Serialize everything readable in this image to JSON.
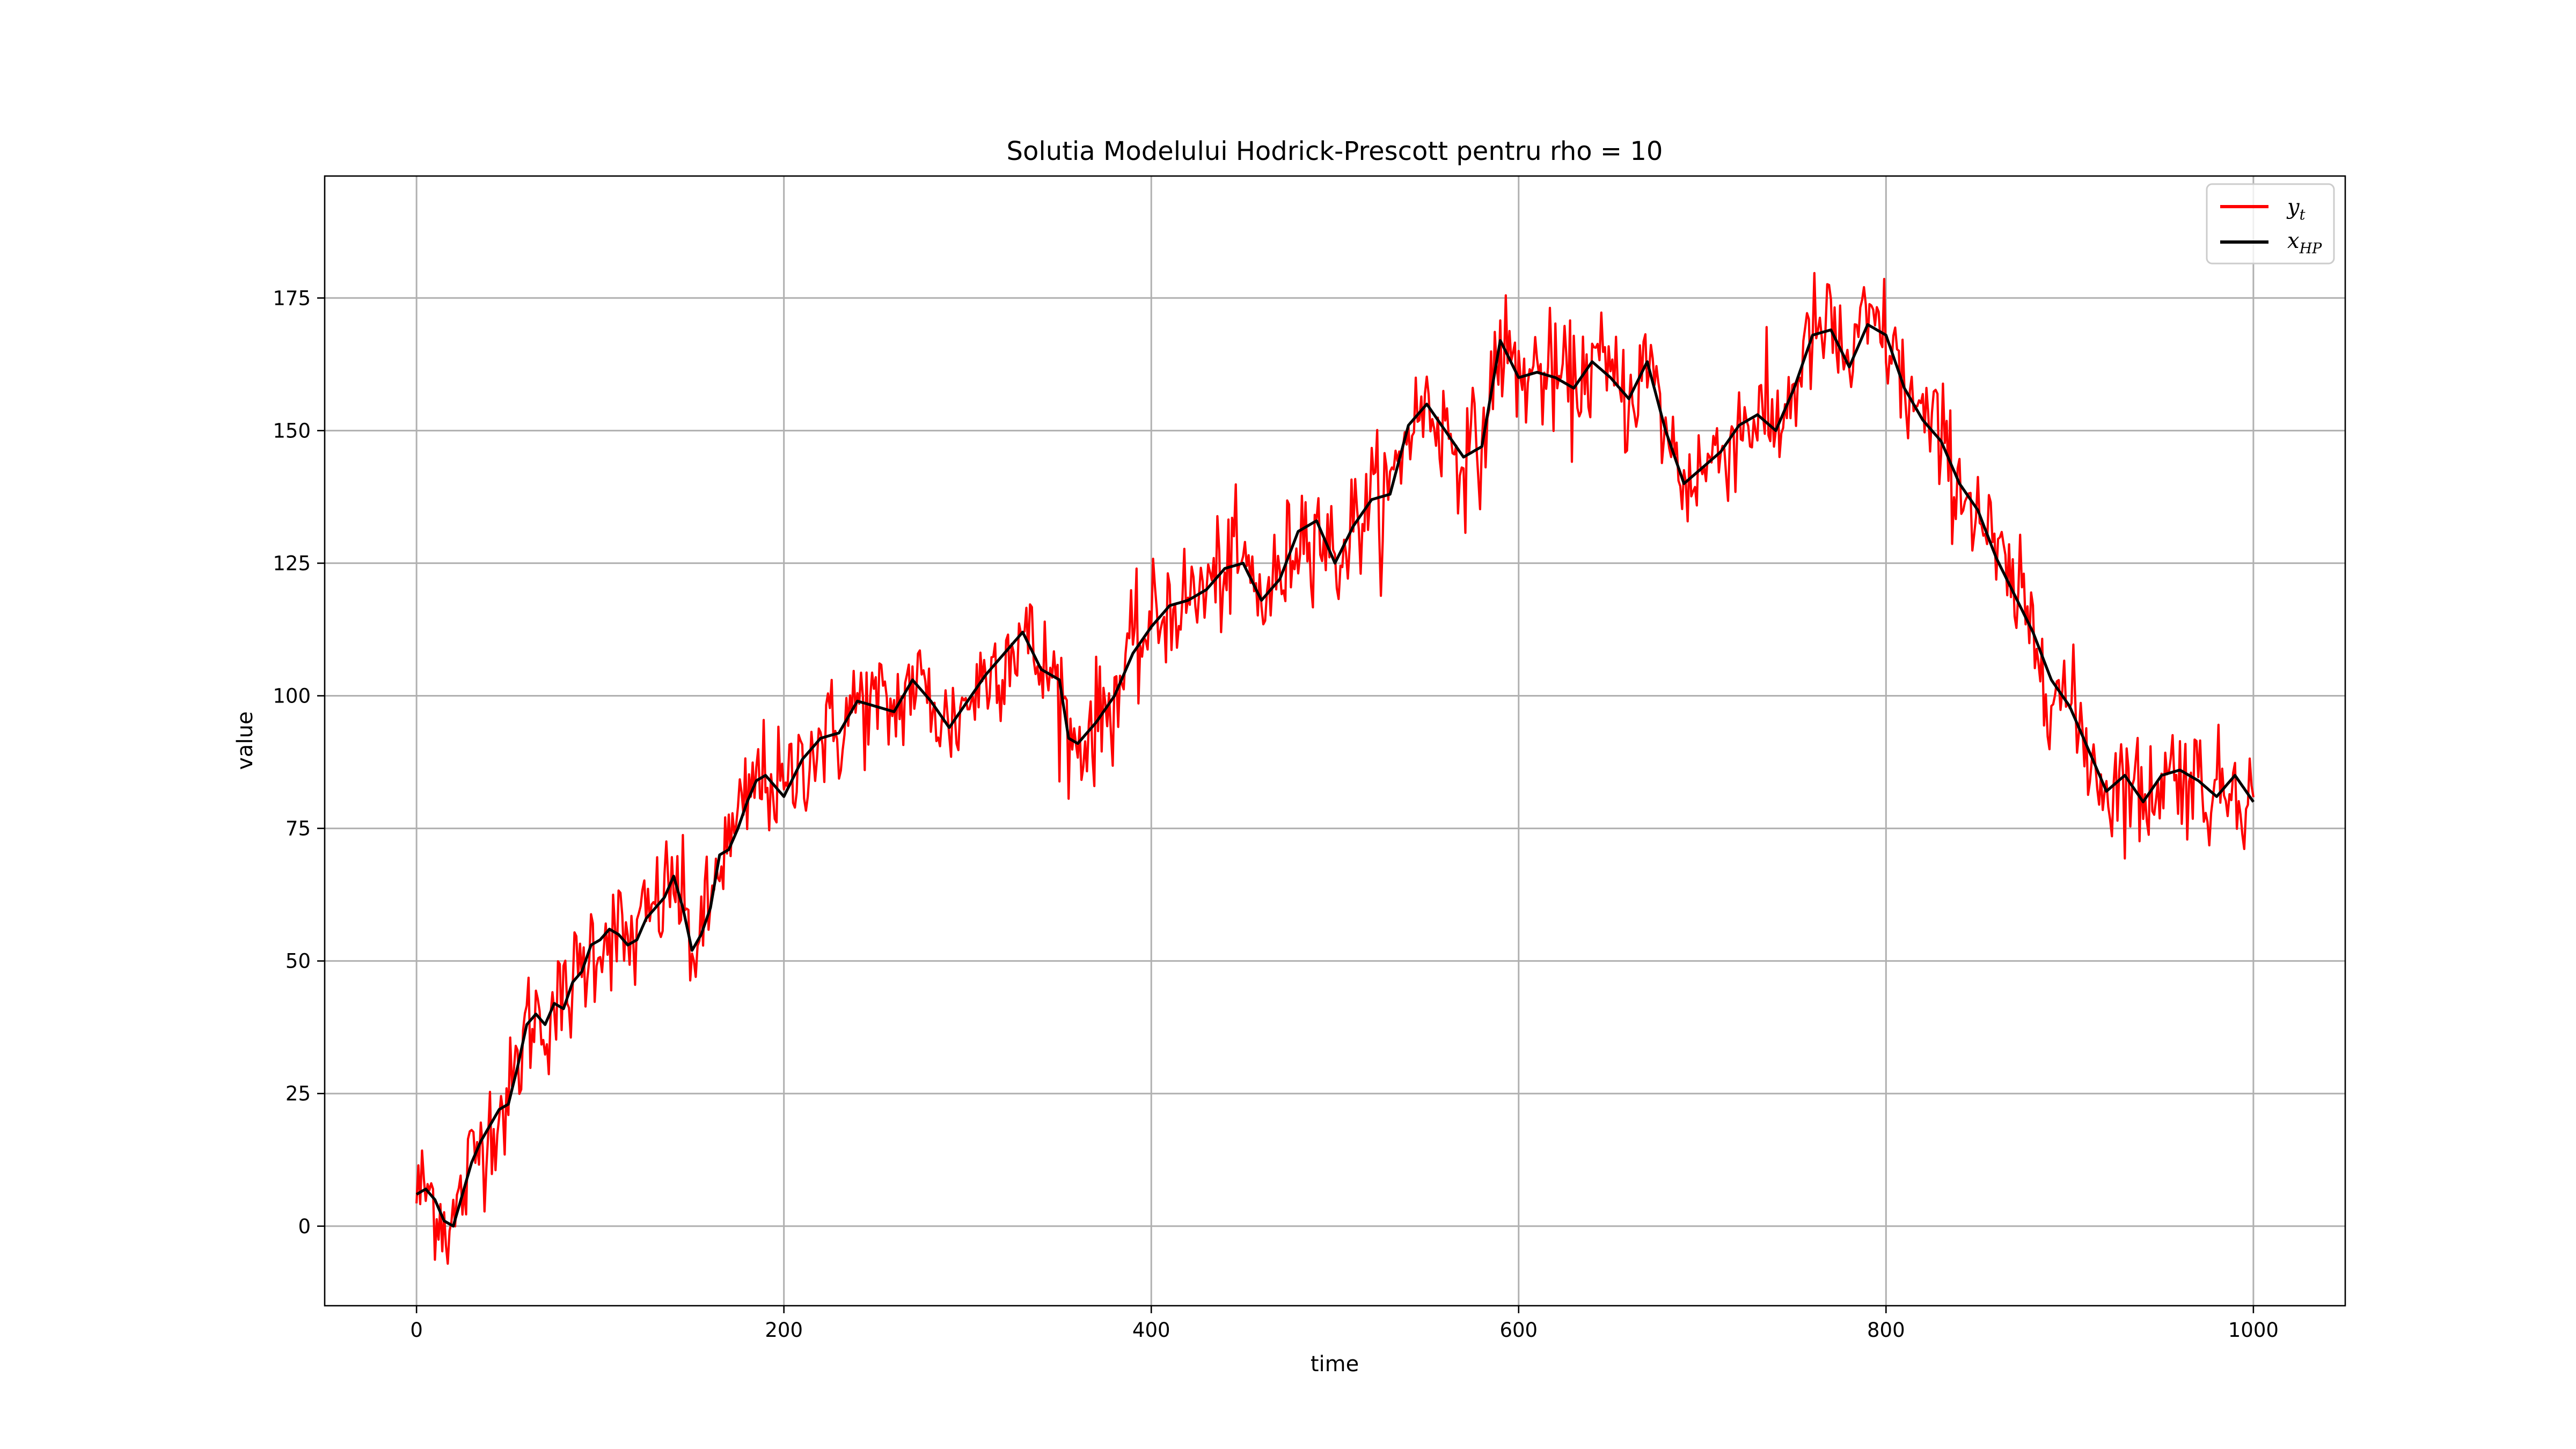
{
  "chart_data": {
    "type": "line",
    "title": "Solutia Modelului Hodrick-Prescott pentru rho = 10",
    "xlabel": "time",
    "ylabel": "value",
    "xlim": [
      -50,
      1050
    ],
    "ylim": [
      -15,
      198
    ],
    "xticks": [
      0,
      200,
      400,
      600,
      800,
      1000
    ],
    "yticks": [
      0,
      25,
      50,
      75,
      100,
      125,
      150,
      175
    ],
    "xtick_labels": [
      "0",
      "200",
      "400",
      "600",
      "800",
      "1000"
    ],
    "ytick_labels": [
      "0",
      "25",
      "50",
      "75",
      "100",
      "125",
      "150",
      "175"
    ],
    "grid": true,
    "legend_position": "top-right",
    "series": [
      {
        "name": "y_t",
        "label_main": "y",
        "label_sub": "t",
        "color": "#ff0000",
        "noise_amplitude": 5.5
      },
      {
        "name": "x_HP",
        "label_main": "x",
        "label_sub": "HP",
        "color": "#000000",
        "noise_amplitude": 0
      }
    ],
    "trend_x": [
      0,
      5,
      10,
      15,
      20,
      25,
      30,
      35,
      40,
      45,
      50,
      55,
      60,
      65,
      70,
      75,
      80,
      85,
      90,
      95,
      100,
      105,
      110,
      115,
      120,
      125,
      130,
      135,
      140,
      145,
      150,
      155,
      160,
      165,
      170,
      175,
      180,
      185,
      190,
      195,
      200,
      210,
      220,
      230,
      240,
      250,
      260,
      270,
      280,
      290,
      300,
      310,
      320,
      330,
      340,
      350,
      355,
      360,
      370,
      380,
      390,
      400,
      410,
      420,
      430,
      440,
      450,
      460,
      470,
      480,
      490,
      500,
      510,
      520,
      530,
      540,
      550,
      560,
      570,
      580,
      590,
      600,
      610,
      620,
      630,
      640,
      650,
      660,
      670,
      680,
      690,
      700,
      710,
      720,
      730,
      740,
      750,
      760,
      770,
      780,
      790,
      800,
      810,
      820,
      830,
      840,
      850,
      860,
      870,
      880,
      890,
      900,
      910,
      920,
      930,
      940,
      950,
      960,
      970,
      980,
      990,
      1000
    ],
    "trend_y": [
      6,
      7,
      5,
      1,
      0,
      6,
      12,
      16,
      19,
      22,
      23,
      30,
      38,
      40,
      38,
      42,
      41,
      46,
      48,
      53,
      54,
      56,
      55,
      53,
      54,
      58,
      60,
      62,
      66,
      60,
      52,
      55,
      60,
      70,
      71,
      75,
      80,
      84,
      85,
      83,
      81,
      88,
      92,
      93,
      99,
      98,
      97,
      103,
      99,
      94,
      99,
      104,
      108,
      112,
      105,
      103,
      92,
      91,
      95,
      100,
      108,
      113,
      117,
      118,
      120,
      124,
      125,
      118,
      122,
      131,
      133,
      125,
      132,
      137,
      138,
      151,
      155,
      150,
      145,
      147,
      167,
      160,
      161,
      160,
      158,
      163,
      160,
      156,
      163,
      150,
      140,
      143,
      146,
      151,
      153,
      150,
      158,
      168,
      169,
      162,
      170,
      168,
      158,
      152,
      148,
      140,
      135,
      126,
      119,
      112,
      103,
      98,
      90,
      82,
      85,
      80,
      85,
      86,
      84,
      81,
      85,
      80
    ]
  }
}
